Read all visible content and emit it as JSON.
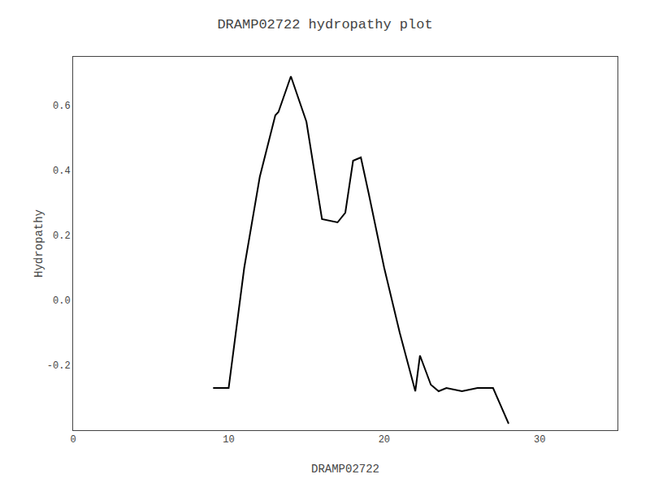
{
  "chart_data": {
    "type": "line",
    "title": "DRAMP02722 hydropathy plot",
    "xlabel": "DRAMP02722",
    "ylabel": "Hydropathy",
    "x": [
      9,
      10,
      11,
      12,
      13,
      13.2,
      14,
      15,
      16,
      17,
      17.5,
      18,
      18.5,
      19,
      20,
      21,
      22,
      22.3,
      23,
      23.5,
      24,
      25,
      26,
      27,
      28
    ],
    "values": [
      -0.27,
      -0.27,
      0.1,
      0.38,
      0.57,
      0.58,
      0.69,
      0.55,
      0.25,
      0.24,
      0.27,
      0.43,
      0.44,
      0.33,
      0.1,
      -0.1,
      -0.28,
      -0.17,
      -0.26,
      -0.28,
      -0.27,
      -0.28,
      -0.27,
      -0.27,
      -0.38
    ],
    "color": "#000000",
    "xlim": [
      0,
      35
    ],
    "ylim": [
      -0.4,
      0.75
    ],
    "xticks": [
      0,
      10,
      20,
      30
    ],
    "yticks": [
      -0.2,
      {
        "value": 0.0,
        "label": "0.0"
      },
      0.2,
      0.4,
      0.6
    ],
    "grid": false
  }
}
